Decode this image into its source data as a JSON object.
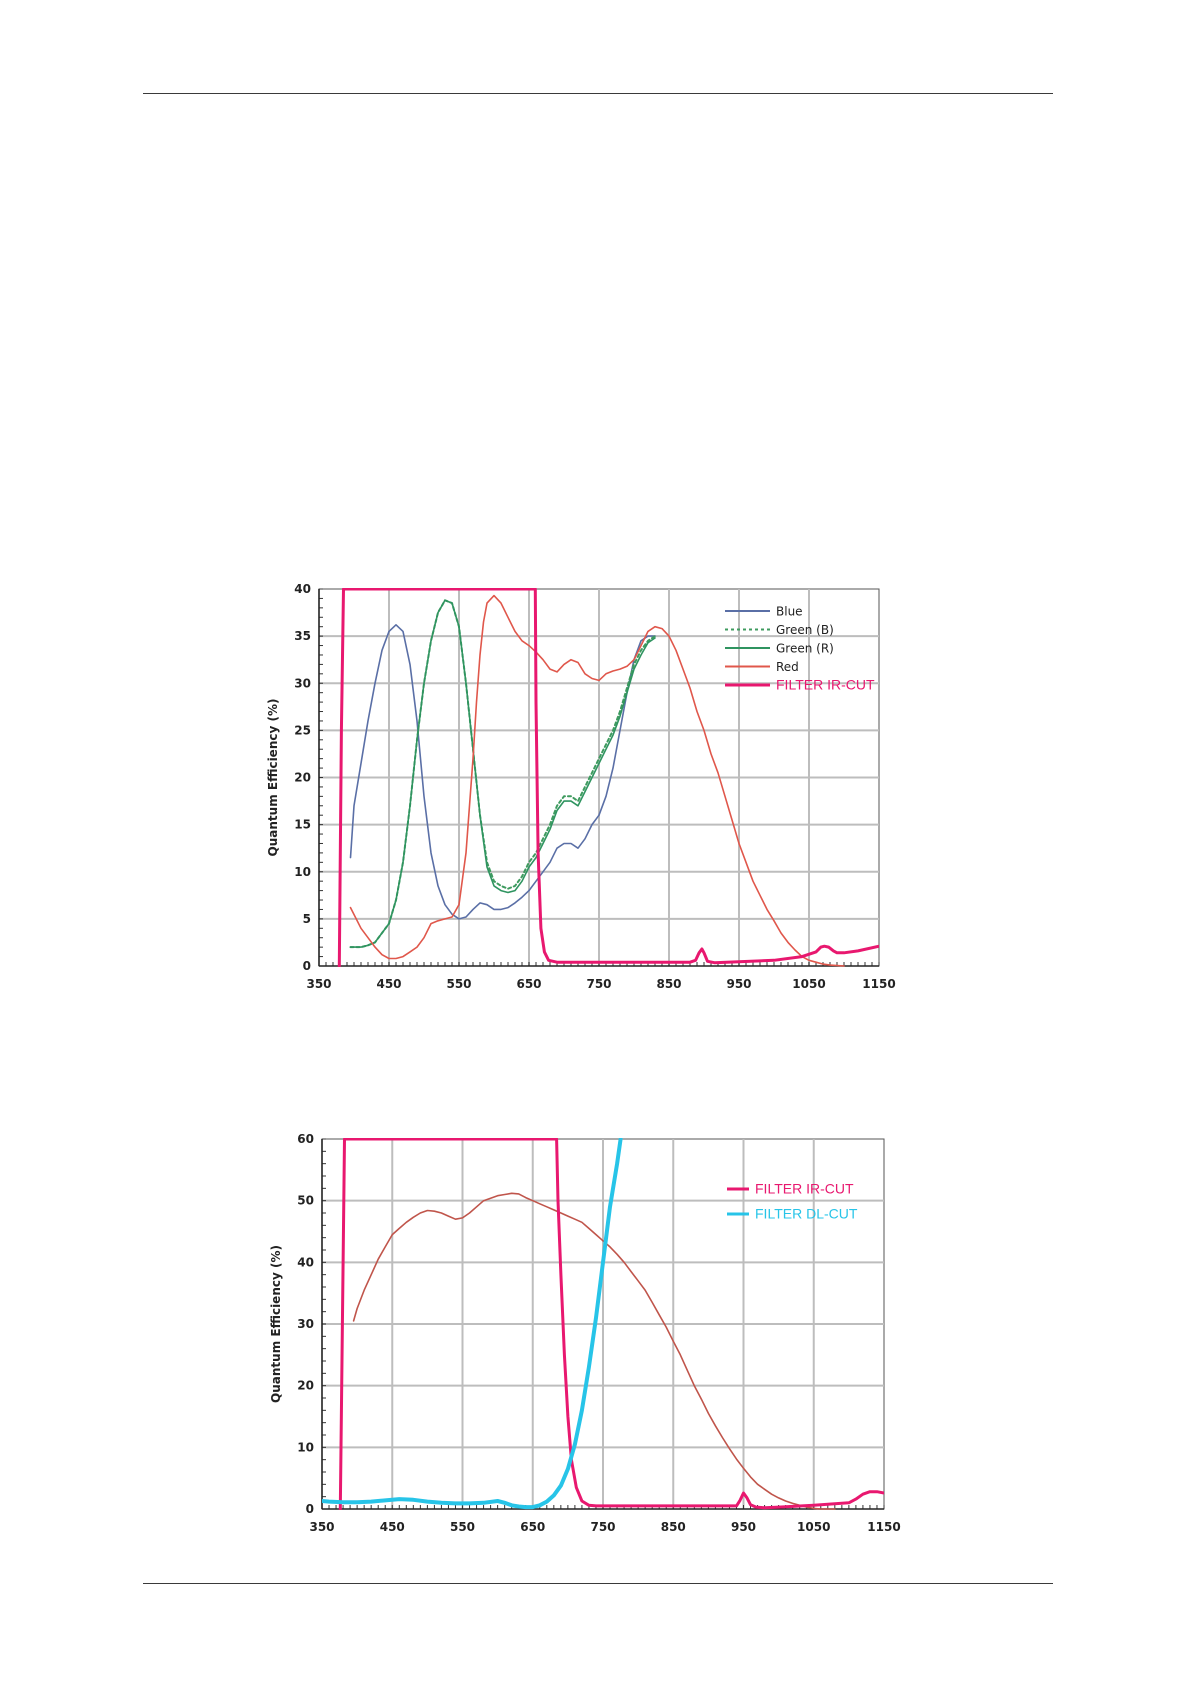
{
  "chart_data": [
    {
      "type": "line",
      "ylabel": "Quantum Efficiency (%)",
      "xlim": [
        350,
        1150
      ],
      "ylim": [
        0,
        40
      ],
      "xticks": [
        350,
        450,
        550,
        650,
        750,
        850,
        950,
        1050,
        1150
      ],
      "yticks": [
        0,
        5,
        10,
        15,
        20,
        25,
        30,
        35,
        40
      ],
      "grid": true,
      "legend_position": "top-right",
      "series": [
        {
          "name": "Blue",
          "color": "#5a6fa6",
          "width": 1.6,
          "dash": "",
          "x": [
            395,
            400,
            410,
            420,
            430,
            440,
            450,
            460,
            470,
            480,
            490,
            500,
            510,
            520,
            530,
            540,
            550,
            560,
            570,
            580,
            590,
            600,
            610,
            620,
            630,
            640,
            650,
            660,
            670,
            680,
            690,
            700,
            710,
            720,
            730,
            740,
            750,
            760,
            770,
            780,
            790,
            800,
            810,
            820,
            830
          ],
          "y": [
            11.5,
            17,
            21.5,
            26,
            30,
            33.5,
            35.5,
            36.2,
            35.5,
            32,
            26,
            18,
            12,
            8.5,
            6.5,
            5.5,
            5,
            5.2,
            6,
            6.7,
            6.5,
            6,
            6,
            6.2,
            6.7,
            7.3,
            8,
            9,
            10,
            11,
            12.5,
            13,
            13,
            12.5,
            13.5,
            15,
            16,
            18,
            21,
            25,
            29,
            32.5,
            34.5,
            35,
            35
          ]
        },
        {
          "name": "Green (B)",
          "color": "#3f9b5f",
          "width": 2,
          "dash": "3 3",
          "x": [
            395,
            410,
            420,
            430,
            440,
            450,
            460,
            470,
            480,
            490,
            500,
            510,
            520,
            530,
            540,
            550,
            560,
            570,
            580,
            590,
            600,
            610,
            620,
            630,
            640,
            650,
            660,
            670,
            680,
            690,
            700,
            710,
            720,
            730,
            740,
            750,
            760,
            770,
            780,
            790,
            800,
            810,
            820,
            830
          ],
          "y": [
            2,
            2,
            2.2,
            2.5,
            3.5,
            4.5,
            7,
            11,
            17,
            24,
            30,
            34.5,
            37.5,
            38.8,
            38.5,
            36,
            30,
            23,
            16,
            11,
            9,
            8.5,
            8.2,
            8.5,
            9.5,
            11,
            12,
            13.5,
            15,
            17,
            18,
            18,
            17.5,
            19,
            20.5,
            22,
            23.5,
            25,
            27,
            29.5,
            32,
            33.5,
            34.5,
            35
          ]
        },
        {
          "name": "Green (R)",
          "color": "#2f9460",
          "width": 1.6,
          "dash": "",
          "x": [
            395,
            410,
            420,
            430,
            440,
            450,
            460,
            470,
            480,
            490,
            500,
            510,
            520,
            530,
            540,
            550,
            560,
            570,
            580,
            590,
            600,
            610,
            620,
            630,
            640,
            650,
            660,
            670,
            680,
            690,
            700,
            710,
            720,
            730,
            740,
            750,
            760,
            770,
            780,
            790,
            800,
            810,
            820,
            830
          ],
          "y": [
            2,
            2,
            2.2,
            2.5,
            3.5,
            4.5,
            7,
            11,
            17,
            24,
            30,
            34.5,
            37.5,
            38.8,
            38.5,
            36,
            30,
            23,
            16,
            10.5,
            8.5,
            8,
            7.8,
            8,
            9,
            10.5,
            11.5,
            13,
            14.5,
            16.5,
            17.5,
            17.5,
            17,
            18.5,
            20,
            21.5,
            23,
            24.5,
            26.5,
            29,
            31.5,
            33,
            34.3,
            34.8
          ]
        },
        {
          "name": "Red",
          "color": "#e0574b",
          "width": 1.6,
          "dash": "",
          "x": [
            395,
            410,
            420,
            430,
            440,
            450,
            460,
            470,
            480,
            490,
            500,
            510,
            520,
            530,
            540,
            550,
            560,
            570,
            575,
            580,
            585,
            590,
            600,
            610,
            620,
            630,
            640,
            650,
            660,
            670,
            680,
            690,
            700,
            710,
            720,
            730,
            740,
            750,
            760,
            770,
            780,
            790,
            800,
            810,
            820,
            830,
            840,
            850,
            860,
            870,
            880,
            890,
            900,
            910,
            920,
            930,
            940,
            950,
            960,
            970,
            980,
            990,
            1000,
            1010,
            1020,
            1030,
            1040,
            1050,
            1060,
            1070,
            1080,
            1090,
            1100
          ],
          "y": [
            6.2,
            4,
            3,
            2,
            1.2,
            0.8,
            0.8,
            1,
            1.5,
            2,
            3,
            4.5,
            4.8,
            5,
            5.2,
            6.5,
            12,
            22,
            28,
            33,
            36.5,
            38.5,
            39.3,
            38.5,
            37,
            35.5,
            34.5,
            34,
            33.3,
            32.5,
            31.5,
            31.2,
            32,
            32.5,
            32.2,
            31,
            30.5,
            30.3,
            31,
            31.3,
            31.5,
            31.8,
            32.5,
            34,
            35.5,
            36,
            35.8,
            35,
            33.5,
            31.5,
            29.5,
            27,
            25,
            22.5,
            20.5,
            18,
            15.5,
            13,
            11,
            9,
            7.5,
            6,
            4.8,
            3.5,
            2.5,
            1.7,
            1,
            0.6,
            0.4,
            0.2,
            0.1,
            0.05,
            0
          ]
        },
        {
          "name": "FILTER IR-CUT",
          "color": "#e8186f",
          "width": 3,
          "dash": "",
          "x": [
            379,
            382,
            385,
            659,
            660,
            663,
            667,
            672,
            678,
            690,
            700,
            800,
            880,
            888,
            893,
            897,
            900,
            905,
            915,
            1000,
            1040,
            1060,
            1067,
            1072,
            1078,
            1085,
            1090,
            1100,
            1120,
            1150
          ],
          "y": [
            0,
            25,
            40,
            40,
            28,
            12,
            4,
            1.5,
            0.6,
            0.4,
            0.4,
            0.4,
            0.4,
            0.6,
            1.4,
            1.8,
            1.4,
            0.5,
            0.35,
            0.6,
            1,
            1.5,
            2,
            2.1,
            2,
            1.6,
            1.4,
            1.4,
            1.6,
            2.1
          ]
        }
      ]
    },
    {
      "type": "line",
      "ylabel": "Quantum Efficiency (%)",
      "xlim": [
        350,
        1150
      ],
      "ylim": [
        0,
        60
      ],
      "xticks": [
        350,
        450,
        550,
        650,
        750,
        850,
        950,
        1050,
        1150
      ],
      "yticks": [
        0,
        10,
        20,
        30,
        40,
        50,
        60
      ],
      "grid": true,
      "legend_position": "top-right",
      "series": [
        {
          "color": "#c0554b",
          "width": 1.6,
          "dash": "",
          "x": [
            395,
            400,
            410,
            420,
            430,
            440,
            450,
            460,
            470,
            480,
            490,
            500,
            510,
            520,
            530,
            540,
            550,
            560,
            570,
            580,
            590,
            600,
            610,
            620,
            630,
            640,
            650,
            660,
            670,
            680,
            690,
            700,
            710,
            720,
            730,
            740,
            750,
            760,
            770,
            780,
            790,
            800,
            810,
            820,
            830,
            840,
            850,
            860,
            870,
            880,
            890,
            900,
            910,
            920,
            930,
            940,
            950,
            960,
            970,
            980,
            990,
            1000,
            1010,
            1020,
            1030,
            1040,
            1050,
            1060,
            1070,
            1080
          ],
          "y": [
            30.5,
            32.5,
            35.5,
            38,
            40.5,
            42.5,
            44.5,
            45.5,
            46.5,
            47.3,
            48,
            48.4,
            48.3,
            48,
            47.5,
            47,
            47.2,
            48,
            49,
            50,
            50.4,
            50.8,
            51,
            51.2,
            51.1,
            50.5,
            50,
            49.5,
            49,
            48.5,
            48,
            47.5,
            47,
            46.5,
            45.5,
            44.5,
            43.5,
            42.5,
            41.3,
            40,
            38.5,
            37,
            35.5,
            33.5,
            31.5,
            29.5,
            27.2,
            25,
            22.5,
            20,
            17.8,
            15.5,
            13.5,
            11.6,
            9.8,
            8.1,
            6.6,
            5.2,
            4,
            3.2,
            2.4,
            1.8,
            1.3,
            0.9,
            0.6,
            0.3,
            0.1,
            0,
            0,
            0
          ]
        },
        {
          "name": "FILTER IR-CUT",
          "color": "#e8186f",
          "width": 3,
          "dash": "",
          "x": [
            376,
            379,
            382,
            684,
            686,
            690,
            695,
            700,
            705,
            712,
            720,
            730,
            740,
            800,
            900,
            940,
            945,
            950,
            955,
            960,
            968,
            980,
            1000,
            1050,
            1100,
            1110,
            1120,
            1130,
            1140,
            1150
          ],
          "y": [
            0,
            30,
            60,
            60,
            50,
            38,
            25,
            15,
            8,
            3.5,
            1.3,
            0.6,
            0.5,
            0.5,
            0.5,
            0.5,
            1.4,
            2.6,
            1.8,
            0.7,
            0.3,
            0.2,
            0.3,
            0.6,
            1,
            1.6,
            2.4,
            2.8,
            2.8,
            2.6
          ]
        },
        {
          "name": "FILTER DL-CUT",
          "color": "#27c4e8",
          "width": 4,
          "dash": "",
          "x": [
            350,
            360,
            380,
            400,
            420,
            440,
            460,
            480,
            500,
            520,
            540,
            560,
            580,
            600,
            610,
            620,
            630,
            640,
            650,
            660,
            670,
            680,
            690,
            700,
            710,
            720,
            730,
            740,
            750,
            760,
            770,
            775
          ],
          "y": [
            1.3,
            1.2,
            1.1,
            1.1,
            1.2,
            1.4,
            1.6,
            1.5,
            1.2,
            1,
            0.9,
            0.9,
            1,
            1.3,
            1,
            0.6,
            0.4,
            0.3,
            0.3,
            0.6,
            1.2,
            2.2,
            3.8,
            6.5,
            10.5,
            16,
            23,
            31,
            40,
            49,
            56,
            60
          ]
        }
      ]
    }
  ]
}
